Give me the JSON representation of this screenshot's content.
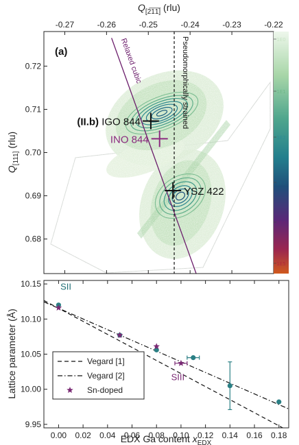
{
  "chart_data": [
    {
      "type": "heatmap",
      "panel_label": "(a)",
      "xlabel_main": "Q",
      "xlabel_sub": "[2̅1̅1̅]",
      "xlabel_unit": " (rlu)",
      "ylabel_main": "Q",
      "ylabel_sub": "[111]",
      "ylabel_unit": " (rlu)",
      "xlim": [
        -0.275,
        -0.22
      ],
      "ylim": [
        0.672,
        0.728
      ],
      "x_ticks": [
        -0.27,
        -0.26,
        -0.25,
        -0.24,
        -0.23,
        -0.22
      ],
      "x_tick_labels": [
        "-0.27",
        "-0.26",
        "-0.25",
        "-0.24",
        "-0.23",
        "-0.22"
      ],
      "y_ticks": [
        0.68,
        0.69,
        0.7,
        0.71,
        0.72
      ],
      "y_tick_labels": [
        "0.68",
        "0.69",
        "0.70",
        "0.71",
        "0.72"
      ],
      "colorbar": {
        "scale": "log",
        "tick_labels": [
          "1E0",
          "1E1",
          "1E2",
          "1E3",
          "1E4",
          "1E5"
        ],
        "tick_colors": [
          "#c8e3c4",
          "#6fb88a",
          "#2c8c96",
          "#1d5d80",
          "#6a2472",
          "#b0283a"
        ]
      },
      "lines": [
        {
          "label": "Relaxed cubic",
          "color": "#6a1b6a",
          "style": "solid",
          "points": [
            [
              -0.2588,
              0.7265
            ],
            [
              -0.2378,
              0.67
            ]
          ]
        },
        {
          "label": "Pseudomorphically strained",
          "color": "#111111",
          "style": "dashed",
          "x": -0.2438
        }
      ],
      "markers": [
        {
          "label": "IGO 844",
          "prefix": "(II.b)",
          "x": -0.2494,
          "y": 0.7073,
          "color": "#111111"
        },
        {
          "label": "INO 844",
          "x": -0.2473,
          "y": 0.7032,
          "color": "#8b2a7f"
        },
        {
          "label": "YSZ 422",
          "x": -0.2441,
          "y": 0.6912,
          "color": "#111111"
        }
      ]
    },
    {
      "type": "scatter",
      "xlabel_main": "EDX Ga content ",
      "xlabel_var": "x",
      "xlabel_sub": "EDX",
      "ylabel": "Lattice parameter (Å)",
      "xlim": [
        -0.012,
        0.188
      ],
      "ylim": [
        9.945,
        10.155
      ],
      "x_ticks": [
        0.0,
        0.02,
        0.04,
        0.06,
        0.08,
        0.1,
        0.12,
        0.14,
        0.16,
        0.18
      ],
      "x_tick_labels": [
        "0.00",
        "0.02",
        "0.04",
        "0.06",
        "0.08",
        "0.10",
        "0.12",
        "0.14",
        "0.16",
        "0.18"
      ],
      "y_ticks": [
        9.95,
        10.0,
        10.05,
        10.1,
        10.15
      ],
      "y_tick_labels": [
        "9.95",
        "10.00",
        "10.05",
        "10.10",
        "10.15"
      ],
      "annotations": [
        {
          "text": "SII",
          "x": 0.0015,
          "y": 10.142,
          "color": "#1f6f75"
        },
        {
          "text": "SIII",
          "x": 0.092,
          "y": 10.013,
          "color": "#7a2a74"
        }
      ],
      "series": [
        {
          "marker": "circle",
          "color": "#2a7f84",
          "points": [
            {
              "x": 0.0,
              "y": 10.12
            },
            {
              "x": 0.05,
              "y": 10.077
            },
            {
              "x": 0.08,
              "y": 10.056
            },
            {
              "x": 0.11,
              "y": 10.045,
              "xerr": 0.005
            },
            {
              "x": 0.14,
              "y": 10.005,
              "yerr": 0.034
            },
            {
              "x": 0.18,
              "y": 9.982
            }
          ]
        },
        {
          "name": "Sn-doped",
          "marker": "star",
          "color": "#7a2a74",
          "points": [
            {
              "x": 0.0,
              "y": 10.116
            },
            {
              "x": 0.05,
              "y": 10.077
            },
            {
              "x": 0.08,
              "y": 10.061
            },
            {
              "x": 0.1,
              "y": 10.037,
              "xerr": 0.005
            }
          ]
        }
      ],
      "fits": [
        {
          "name": "Vegard [1]",
          "style": "dashed",
          "points": [
            [
              -0.012,
              10.1265
            ],
            [
              0.188,
              9.9405
            ]
          ]
        },
        {
          "name": "Vegard [2]",
          "style": "dashdot",
          "points": [
            [
              -0.012,
              10.1245
            ],
            [
              0.188,
              9.972
            ]
          ]
        }
      ],
      "legend": {
        "placement": "bottom-left",
        "entries": [
          "Vegard [1]",
          "Vegard [2]",
          "Sn-doped"
        ]
      }
    }
  ]
}
